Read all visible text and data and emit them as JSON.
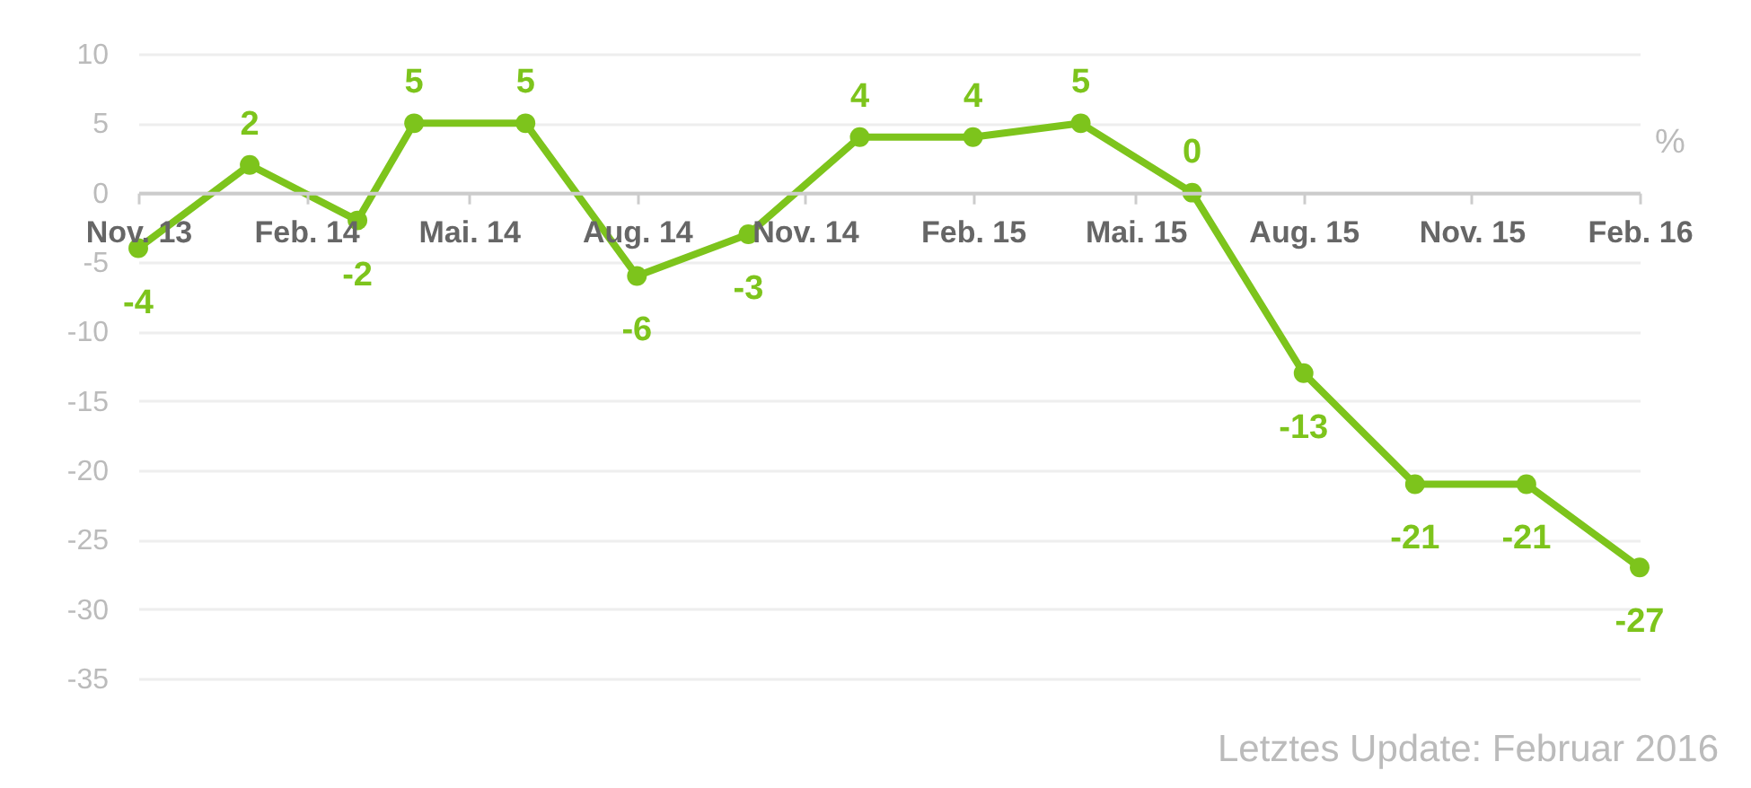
{
  "chart_data": {
    "type": "line",
    "x": [
      "2013-11",
      "2014-01",
      "2014-03",
      "2014-04",
      "2014-06",
      "2014-08",
      "2014-10",
      "2014-12",
      "2015-02",
      "2015-04",
      "2015-06",
      "2015-08",
      "2015-10",
      "2015-12",
      "2016-02"
    ],
    "values": [
      -4,
      2,
      -2,
      5,
      5,
      -6,
      -3,
      4,
      4,
      5,
      0,
      -13,
      -21,
      -21,
      -27
    ],
    "color": "#7dc41c",
    "xlim": [
      "2013-11",
      "2016-02"
    ],
    "xticks": [
      {
        "value": "2013-11",
        "label": "Nov. 13"
      },
      {
        "value": "2014-02",
        "label": "Feb. 14"
      },
      {
        "value": "2014-05",
        "label": "Mai. 14"
      },
      {
        "value": "2014-08",
        "label": "Aug. 14"
      },
      {
        "value": "2014-11",
        "label": "Nov. 14"
      },
      {
        "value": "2015-02",
        "label": "Feb. 15"
      },
      {
        "value": "2015-05",
        "label": "Mai. 15"
      },
      {
        "value": "2015-08",
        "label": "Aug. 15"
      },
      {
        "value": "2015-11",
        "label": "Nov. 15"
      },
      {
        "value": "2016-02",
        "label": "Feb. 16"
      }
    ],
    "ylim": [
      -35,
      10
    ],
    "yticks": [
      -35,
      -30,
      -25,
      -20,
      -15,
      -10,
      -5,
      0,
      5,
      10
    ],
    "ylabel": "%",
    "annotations": [
      "Letztes Update: Februar 2016"
    ],
    "data_labels": true,
    "grid": "y",
    "marker": "circle",
    "line_style": "solid"
  }
}
